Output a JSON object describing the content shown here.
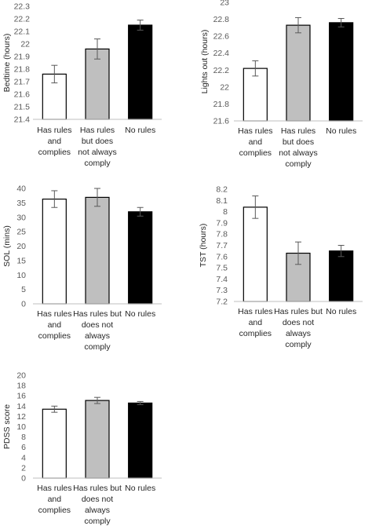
{
  "chart_data": [
    {
      "type": "bar",
      "ylabel": "Bedtime (hours)",
      "categories": [
        [
          "Has rules",
          "and",
          "complies"
        ],
        [
          "Has rules",
          "but does",
          "not always",
          "comply"
        ],
        [
          "No rules"
        ]
      ],
      "values": [
        21.76,
        21.96,
        22.15
      ],
      "errors": [
        0.07,
        0.08,
        0.04
      ],
      "ylim": [
        21.4,
        22.3
      ],
      "yticks": [
        "21.4",
        "21.5",
        "21.6",
        "21.7",
        "21.8",
        "21.9",
        "22",
        "22.1",
        "22.2",
        "22.3"
      ],
      "colors": [
        "#ffffff",
        "#bfbfbf",
        "#000000"
      ]
    },
    {
      "type": "bar",
      "ylabel": "Lights out (hours)",
      "categories": [
        [
          "Has rules",
          "and",
          "complies"
        ],
        [
          "Has rules",
          "but does",
          "not always",
          "comply"
        ],
        [
          "No rules"
        ]
      ],
      "values": [
        22.22,
        22.73,
        22.76
      ],
      "errors": [
        0.09,
        0.09,
        0.05
      ],
      "ylim": [
        21.6,
        23
      ],
      "yticks": [
        "21.6",
        "21.8",
        "22",
        "22.2",
        "22.4",
        "22.6",
        "22.8",
        "23"
      ],
      "colors": [
        "#ffffff",
        "#bfbfbf",
        "#000000"
      ]
    },
    {
      "type": "bar",
      "ylabel": "SOL (mins)",
      "categories": [
        [
          "Has rules",
          "and",
          "complies"
        ],
        [
          "Has rules but",
          "does not",
          "always",
          "comply"
        ],
        [
          "No rules"
        ]
      ],
      "values": [
        36.3,
        36.9,
        31.9
      ],
      "errors": [
        2.9,
        3.1,
        1.5
      ],
      "ylim": [
        0,
        40
      ],
      "yticks": [
        "0",
        "5",
        "10",
        "15",
        "20",
        "25",
        "30",
        "35",
        "40"
      ],
      "colors": [
        "#ffffff",
        "#bfbfbf",
        "#000000"
      ]
    },
    {
      "type": "bar",
      "ylabel": "TST (hours)",
      "categories": [
        [
          "Has rules",
          "and",
          "complies"
        ],
        [
          "Has rules but",
          "does not",
          "always",
          "comply"
        ],
        [
          "No rules"
        ]
      ],
      "values": [
        8.04,
        7.63,
        7.65
      ],
      "errors": [
        0.1,
        0.1,
        0.05
      ],
      "ylim": [
        7.2,
        8.2
      ],
      "yticks": [
        "7.2",
        "7.3",
        "7.4",
        "7.5",
        "7.6",
        "7.7",
        "7.8",
        "7.9",
        "8",
        "8.1",
        "8.2"
      ],
      "colors": [
        "#ffffff",
        "#bfbfbf",
        "#000000"
      ]
    },
    {
      "type": "bar",
      "ylabel": "PDSS score",
      "categories": [
        [
          "Has rules",
          "and",
          "complies"
        ],
        [
          "Has rules but",
          "does not",
          "always",
          "comply"
        ],
        [
          "No rules"
        ]
      ],
      "values": [
        13.4,
        15.1,
        14.6
      ],
      "errors": [
        0.6,
        0.6,
        0.3
      ],
      "ylim": [
        0,
        20
      ],
      "yticks": [
        "0",
        "2",
        "4",
        "6",
        "8",
        "10",
        "12",
        "14",
        "16",
        "18",
        "20"
      ],
      "colors": [
        "#ffffff",
        "#bfbfbf",
        "#000000"
      ]
    }
  ]
}
